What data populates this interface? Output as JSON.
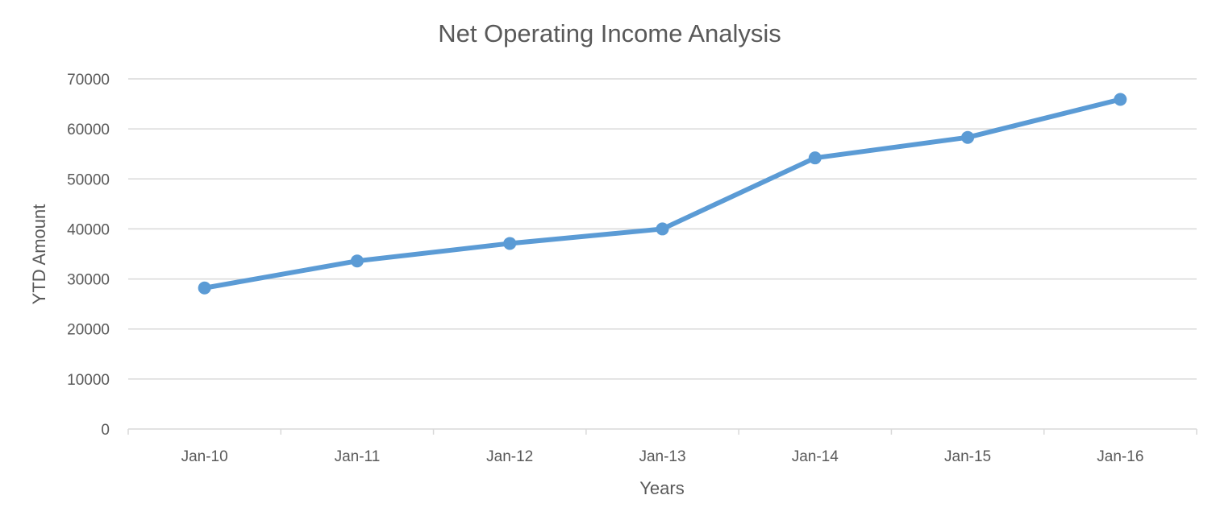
{
  "chart_data": {
    "type": "line",
    "title": "Net Operating Income Analysis",
    "xlabel": "Years",
    "ylabel": "YTD Amount",
    "categories": [
      "Jan-10",
      "Jan-11",
      "Jan-12",
      "Jan-13",
      "Jan-14",
      "Jan-15",
      "Jan-16"
    ],
    "series": [
      {
        "values": [
          28200,
          33600,
          37100,
          40000,
          54200,
          58300,
          65900
        ],
        "color": "#5b9bd5"
      }
    ],
    "ylim": [
      0,
      70000
    ],
    "yticks": [
      0,
      10000,
      20000,
      30000,
      40000,
      50000,
      60000,
      70000
    ],
    "grid": true,
    "legend": "none"
  }
}
